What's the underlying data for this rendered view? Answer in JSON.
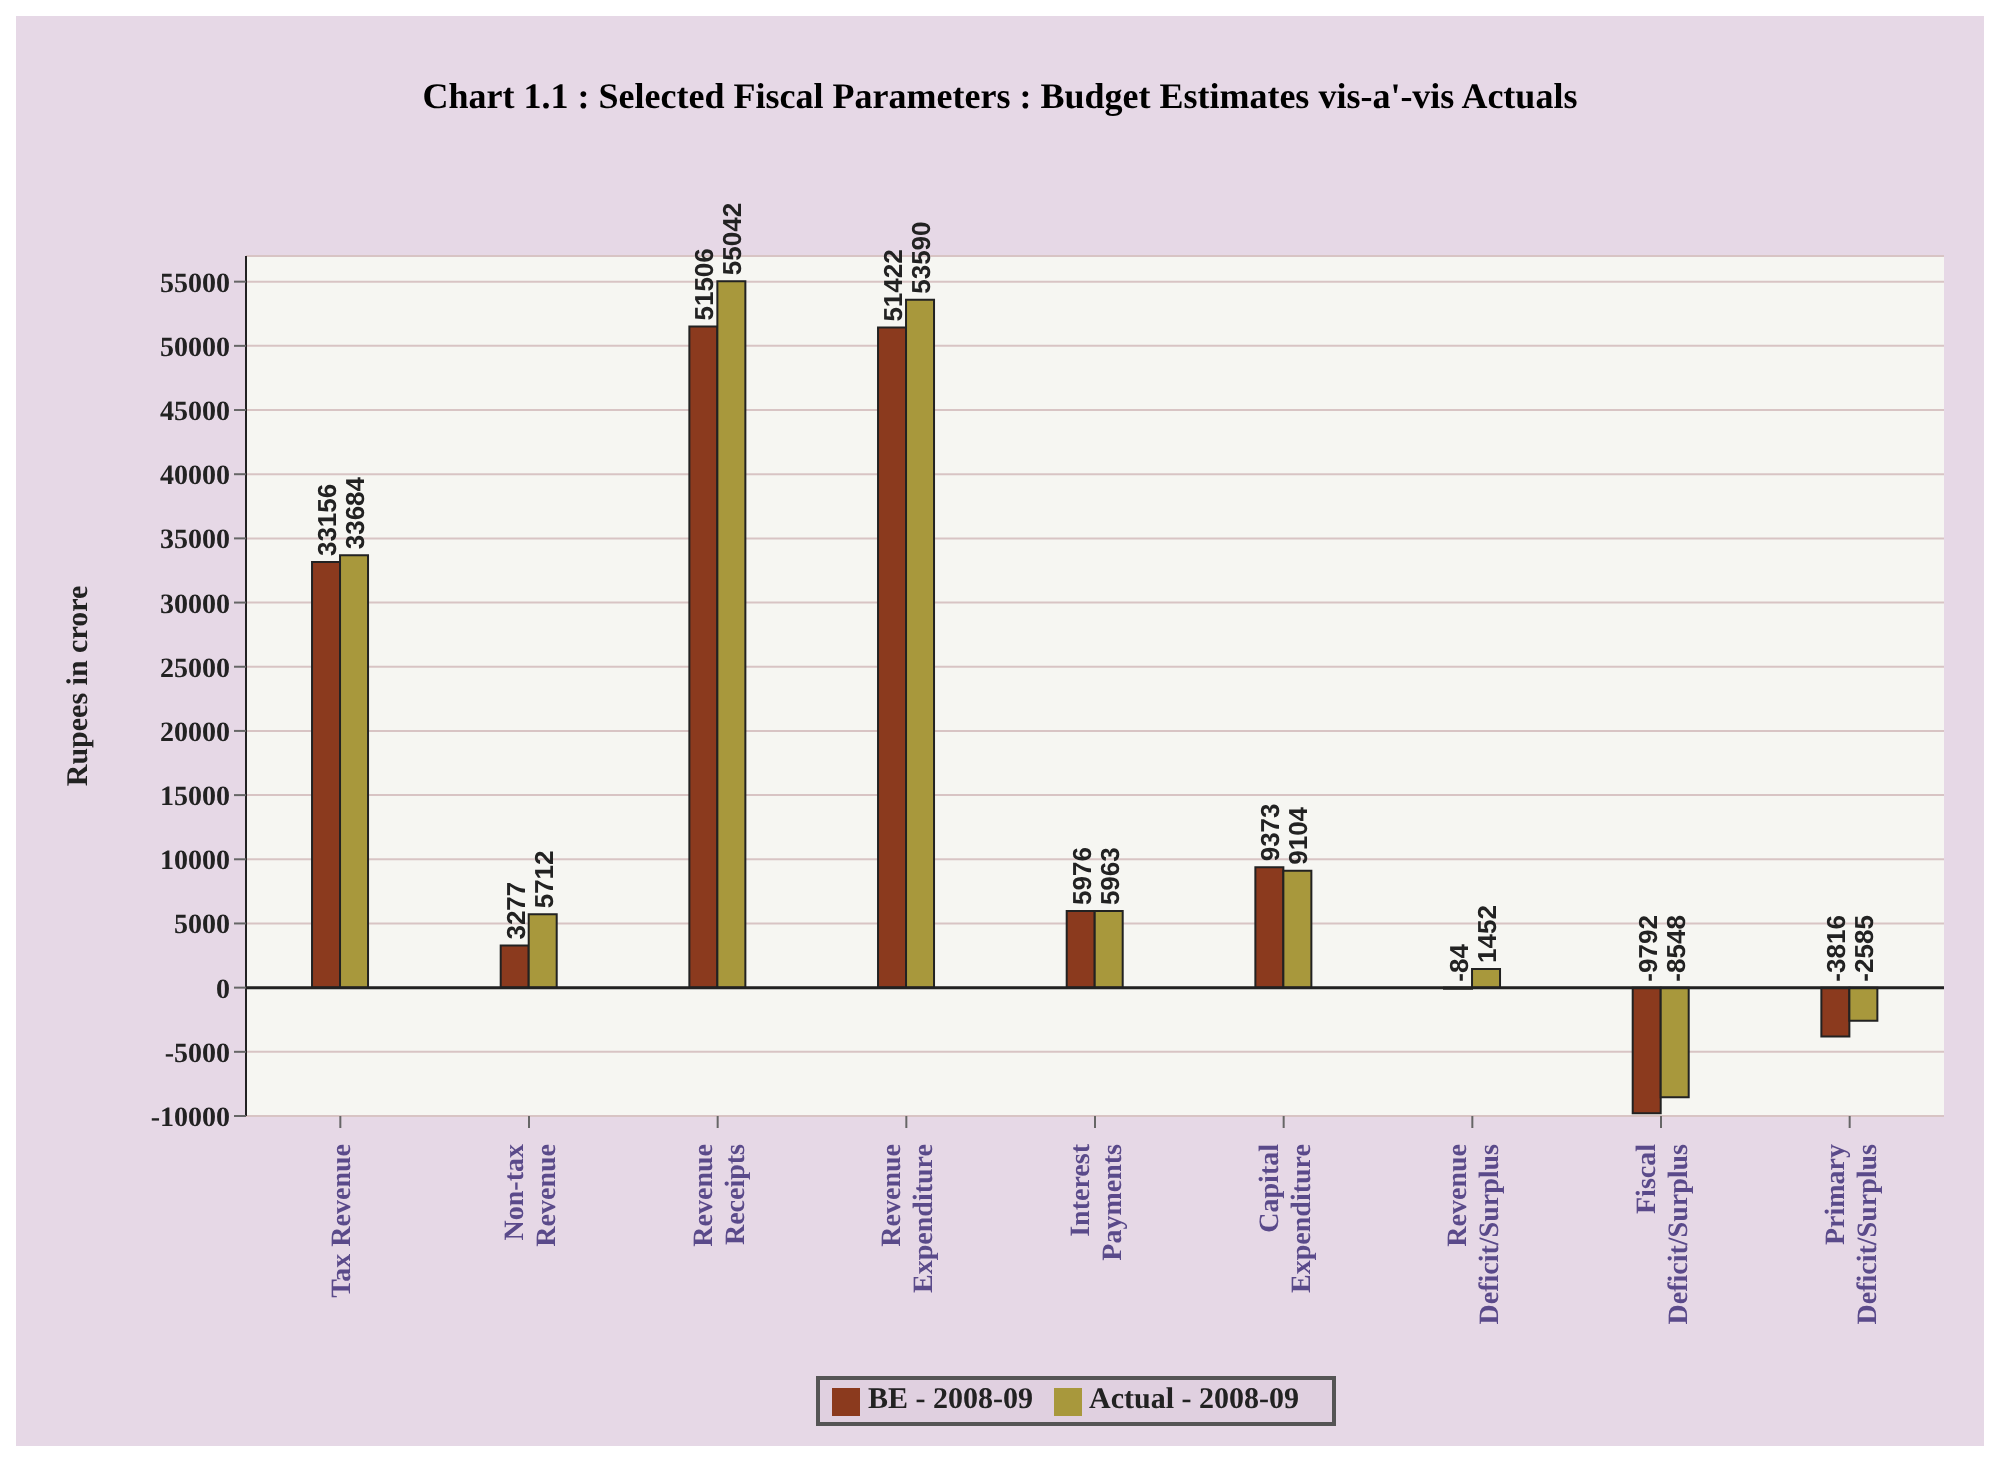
{
  "chart_data": {
    "type": "bar",
    "title": "Chart 1.1 : Selected Fiscal Parameters : Budget Estimates vis-a'-vis Actuals",
    "ylabel": "Rupees in crore",
    "categories": [
      "Tax Revenue",
      "Non-tax Revenue",
      "Revenue Receipts",
      "Revenue Expenditure",
      "Interest Payments",
      "Capital Expenditure",
      "Revenue Deficit/Surplus",
      "Fiscal Deficit/Surplus",
      "Primary Deficit/Surplus"
    ],
    "series": [
      {
        "name": "BE - 2008-09",
        "color": "#8b3a1e",
        "values": [
          33156,
          3277,
          51506,
          51422,
          5976,
          9373,
          -84,
          -9792,
          -3816
        ]
      },
      {
        "name": "Actual - 2008-09",
        "color": "#a8983c",
        "values": [
          33684,
          5712,
          55042,
          53590,
          5963,
          9104,
          1452,
          -8548,
          -2585
        ]
      }
    ],
    "ylim": [
      -10000,
      57000
    ],
    "yticks": [
      -10000,
      -5000,
      0,
      5000,
      10000,
      15000,
      20000,
      25000,
      30000,
      35000,
      40000,
      45000,
      50000,
      55000
    ],
    "grid": "y",
    "legend": "bottom",
    "data_labels": true
  }
}
